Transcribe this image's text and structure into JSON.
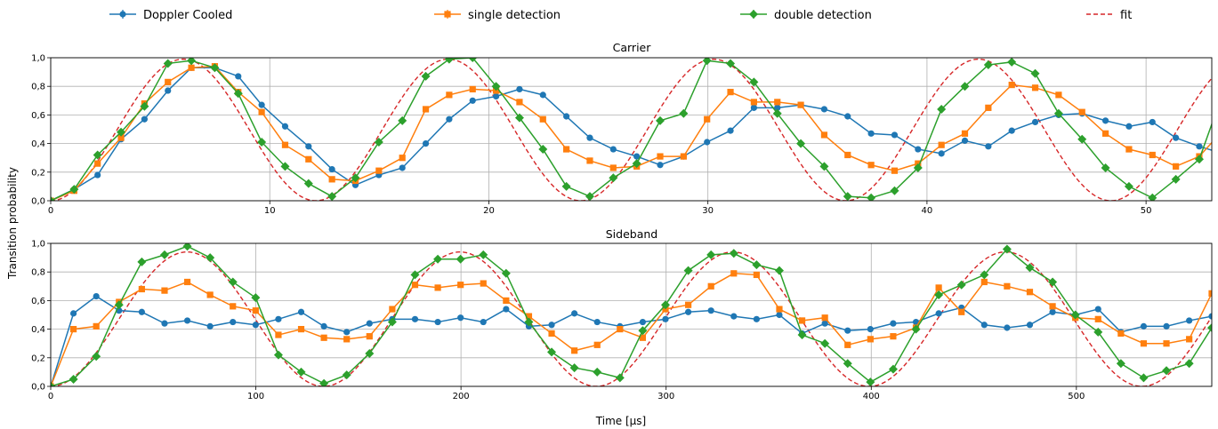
{
  "legend": [
    {
      "name": "Doppler Cooled",
      "color": "#1f77b4",
      "marker": "circle",
      "kind": "series"
    },
    {
      "name": "single detection",
      "color": "#ff7f0e",
      "marker": "square",
      "kind": "series"
    },
    {
      "name": "double detection",
      "color": "#2ca02c",
      "marker": "diamond",
      "kind": "series"
    },
    {
      "name": "fit",
      "color": "#d62728",
      "marker": "none",
      "kind": "dashed"
    }
  ],
  "shared_ylabel": "Transition probability",
  "chart_data": [
    {
      "type": "line",
      "title": "Carrier",
      "xlabel": "",
      "ylabel": "Transition probability",
      "xlim": [
        0,
        53
      ],
      "ylim": [
        0,
        1
      ],
      "xticks": [
        0,
        10,
        20,
        30,
        40,
        50
      ],
      "yticks": [
        0.0,
        0.2,
        0.4,
        0.6,
        0.8,
        1.0
      ],
      "ytick_labels": [
        "0,0",
        "0,2",
        "0,4",
        "0,6",
        "0,8",
        "1,0"
      ],
      "grid": true,
      "fit": {
        "amplitude": 0.99,
        "period": 12.1
      },
      "series": [
        {
          "name": "Doppler Cooled",
          "color": "#1f77b4",
          "marker": "circle",
          "x": [
            0,
            1.07,
            2.14,
            3.21,
            4.28,
            5.35,
            6.42,
            7.49,
            8.56,
            9.63,
            10.7,
            11.77,
            12.84,
            13.91,
            14.98,
            16.05,
            17.12,
            18.19,
            19.26,
            20.33,
            21.4,
            22.47,
            23.54,
            24.61,
            25.68,
            26.75,
            27.82,
            28.89,
            29.96,
            31.03,
            32.1,
            33.17,
            34.24,
            35.31,
            36.38,
            37.45,
            38.52,
            39.59,
            40.66,
            41.73,
            42.8,
            43.87,
            44.94,
            46.01,
            47.08,
            48.15,
            49.22,
            50.29,
            51.36,
            52.43,
            53.5
          ],
          "y": [
            0.0,
            0.08,
            0.18,
            0.43,
            0.57,
            0.77,
            0.93,
            0.93,
            0.87,
            0.67,
            0.52,
            0.38,
            0.22,
            0.11,
            0.18,
            0.23,
            0.4,
            0.57,
            0.7,
            0.73,
            0.78,
            0.74,
            0.59,
            0.44,
            0.36,
            0.31,
            0.25,
            0.31,
            0.41,
            0.49,
            0.65,
            0.65,
            0.67,
            0.64,
            0.59,
            0.47,
            0.46,
            0.36,
            0.33,
            0.42,
            0.38,
            0.49,
            0.55,
            0.6,
            0.61,
            0.56,
            0.52,
            0.55,
            0.44,
            0.38,
            0.33
          ]
        },
        {
          "name": "single detection",
          "color": "#ff7f0e",
          "marker": "square",
          "x": [
            0,
            1.07,
            2.14,
            3.21,
            4.28,
            5.35,
            6.42,
            7.49,
            8.56,
            9.63,
            10.7,
            11.77,
            12.84,
            13.91,
            14.98,
            16.05,
            17.12,
            18.19,
            19.26,
            20.33,
            21.4,
            22.47,
            23.54,
            24.61,
            25.68,
            26.75,
            27.82,
            28.89,
            29.96,
            31.03,
            32.1,
            33.17,
            34.24,
            35.31,
            36.38,
            37.45,
            38.52,
            39.59,
            40.66,
            41.73,
            42.8,
            43.87,
            44.94,
            46.01,
            47.08,
            48.15,
            49.22,
            50.29,
            51.36,
            52.43,
            53.5
          ],
          "y": [
            0.0,
            0.07,
            0.26,
            0.44,
            0.68,
            0.83,
            0.93,
            0.94,
            0.76,
            0.62,
            0.39,
            0.29,
            0.15,
            0.14,
            0.21,
            0.3,
            0.64,
            0.74,
            0.78,
            0.77,
            0.69,
            0.57,
            0.36,
            0.28,
            0.23,
            0.24,
            0.31,
            0.31,
            0.57,
            0.76,
            0.69,
            0.69,
            0.67,
            0.46,
            0.32,
            0.25,
            0.21,
            0.26,
            0.39,
            0.47,
            0.65,
            0.81,
            0.79,
            0.74,
            0.62,
            0.47,
            0.36,
            0.32,
            0.24,
            0.31,
            0.49
          ]
        },
        {
          "name": "double detection",
          "color": "#2ca02c",
          "marker": "diamond",
          "x": [
            0,
            1.07,
            2.14,
            3.21,
            4.28,
            5.35,
            6.42,
            7.49,
            8.56,
            9.63,
            10.7,
            11.77,
            12.84,
            13.91,
            14.98,
            16.05,
            17.12,
            18.19,
            19.26,
            20.33,
            21.4,
            22.47,
            23.54,
            24.61,
            25.68,
            26.75,
            27.82,
            28.89,
            29.96,
            31.03,
            32.1,
            33.17,
            34.24,
            35.31,
            36.38,
            37.45,
            38.52,
            39.59,
            40.66,
            41.73,
            42.8,
            43.87,
            44.94,
            46.01,
            47.08,
            48.15,
            49.22,
            50.29,
            51.36,
            52.43,
            53.5
          ],
          "y": [
            0.0,
            0.08,
            0.32,
            0.48,
            0.66,
            0.96,
            0.98,
            0.93,
            0.75,
            0.41,
            0.24,
            0.12,
            0.03,
            0.16,
            0.41,
            0.56,
            0.87,
            0.99,
            1.0,
            0.8,
            0.58,
            0.36,
            0.1,
            0.03,
            0.16,
            0.26,
            0.56,
            0.61,
            0.98,
            0.96,
            0.83,
            0.61,
            0.4,
            0.24,
            0.03,
            0.02,
            0.07,
            0.23,
            0.64,
            0.8,
            0.95,
            0.97,
            0.89,
            0.61,
            0.43,
            0.23,
            0.1,
            0.02,
            0.15,
            0.29,
            0.75
          ]
        }
      ]
    },
    {
      "type": "line",
      "title": "Sideband",
      "xlabel": "Time [μs]",
      "ylabel": "Transition probability",
      "xlim": [
        0,
        566
      ],
      "ylim": [
        0,
        1
      ],
      "xticks": [
        0,
        100,
        200,
        300,
        400,
        500
      ],
      "yticks": [
        0.0,
        0.2,
        0.4,
        0.6,
        0.8,
        1.0
      ],
      "ytick_labels": [
        "0,0",
        "0,2",
        "0,4",
        "0,6",
        "0,8",
        "1,0"
      ],
      "grid": true,
      "fit": {
        "amplitude": 0.94,
        "period": 133
      },
      "series": [
        {
          "name": "Doppler Cooled",
          "color": "#1f77b4",
          "marker": "circle",
          "x": [
            0,
            11.1,
            22.2,
            33.3,
            44.4,
            55.5,
            66.6,
            77.7,
            88.8,
            99.9,
            111,
            122.1,
            133.2,
            144.3,
            155.4,
            166.5,
            177.6,
            188.7,
            199.8,
            210.9,
            222,
            233.1,
            244.2,
            255.3,
            266.4,
            277.5,
            288.6,
            299.7,
            310.8,
            321.9,
            333,
            344.1,
            355.2,
            366.3,
            377.4,
            388.5,
            399.6,
            410.7,
            421.8,
            432.9,
            444,
            455.1,
            466.2,
            477.3,
            488.4,
            499.5,
            510.6,
            521.7,
            532.8,
            543.9,
            555,
            566
          ],
          "y": [
            0.0,
            0.51,
            0.63,
            0.53,
            0.52,
            0.44,
            0.46,
            0.42,
            0.45,
            0.43,
            0.47,
            0.52,
            0.42,
            0.38,
            0.44,
            0.47,
            0.47,
            0.45,
            0.48,
            0.45,
            0.54,
            0.42,
            0.43,
            0.51,
            0.45,
            0.42,
            0.45,
            0.47,
            0.52,
            0.53,
            0.49,
            0.47,
            0.5,
            0.37,
            0.44,
            0.39,
            0.4,
            0.44,
            0.45,
            0.51,
            0.55,
            0.43,
            0.41,
            0.43,
            0.52,
            0.5,
            0.54,
            0.38,
            0.42,
            0.42,
            0.46,
            0.49
          ]
        },
        {
          "name": "single detection",
          "color": "#ff7f0e",
          "marker": "square",
          "x": [
            0,
            11.1,
            22.2,
            33.3,
            44.4,
            55.5,
            66.6,
            77.7,
            88.8,
            99.9,
            111,
            122.1,
            133.2,
            144.3,
            155.4,
            166.5,
            177.6,
            188.7,
            199.8,
            210.9,
            222,
            233.1,
            244.2,
            255.3,
            266.4,
            277.5,
            288.6,
            299.7,
            310.8,
            321.9,
            333,
            344.1,
            355.2,
            366.3,
            377.4,
            388.5,
            399.6,
            410.7,
            421.8,
            432.9,
            444,
            455.1,
            466.2,
            477.3,
            488.4,
            499.5,
            510.6,
            521.7,
            532.8,
            543.9,
            555,
            566
          ],
          "y": [
            0.0,
            0.4,
            0.42,
            0.59,
            0.68,
            0.67,
            0.73,
            0.64,
            0.56,
            0.53,
            0.36,
            0.4,
            0.34,
            0.33,
            0.35,
            0.54,
            0.71,
            0.69,
            0.71,
            0.72,
            0.6,
            0.49,
            0.37,
            0.25,
            0.29,
            0.4,
            0.34,
            0.54,
            0.57,
            0.7,
            0.79,
            0.78,
            0.54,
            0.46,
            0.48,
            0.29,
            0.33,
            0.35,
            0.41,
            0.69,
            0.52,
            0.73,
            0.7,
            0.66,
            0.56,
            0.48,
            0.47,
            0.37,
            0.3,
            0.3,
            0.33,
            0.65
          ]
        },
        {
          "name": "double detection",
          "color": "#2ca02c",
          "marker": "diamond",
          "x": [
            0,
            11.1,
            22.2,
            33.3,
            44.4,
            55.5,
            66.6,
            77.7,
            88.8,
            99.9,
            111,
            122.1,
            133.2,
            144.3,
            155.4,
            166.5,
            177.6,
            188.7,
            199.8,
            210.9,
            222,
            233.1,
            244.2,
            255.3,
            266.4,
            277.5,
            288.6,
            299.7,
            310.8,
            321.9,
            333,
            344.1,
            355.2,
            366.3,
            377.4,
            388.5,
            399.6,
            410.7,
            421.8,
            432.9,
            444,
            455.1,
            466.2,
            477.3,
            488.4,
            499.5,
            510.6,
            521.7,
            532.8,
            543.9,
            555,
            566
          ],
          "y": [
            0.0,
            0.05,
            0.21,
            0.57,
            0.87,
            0.92,
            0.98,
            0.9,
            0.73,
            0.62,
            0.22,
            0.1,
            0.02,
            0.08,
            0.23,
            0.45,
            0.78,
            0.89,
            0.89,
            0.92,
            0.79,
            0.45,
            0.24,
            0.13,
            0.1,
            0.06,
            0.39,
            0.57,
            0.81,
            0.92,
            0.93,
            0.85,
            0.81,
            0.36,
            0.3,
            0.16,
            0.03,
            0.12,
            0.4,
            0.64,
            0.71,
            0.78,
            0.96,
            0.83,
            0.73,
            0.5,
            0.38,
            0.16,
            0.06,
            0.11,
            0.16,
            0.41
          ]
        }
      ]
    }
  ]
}
